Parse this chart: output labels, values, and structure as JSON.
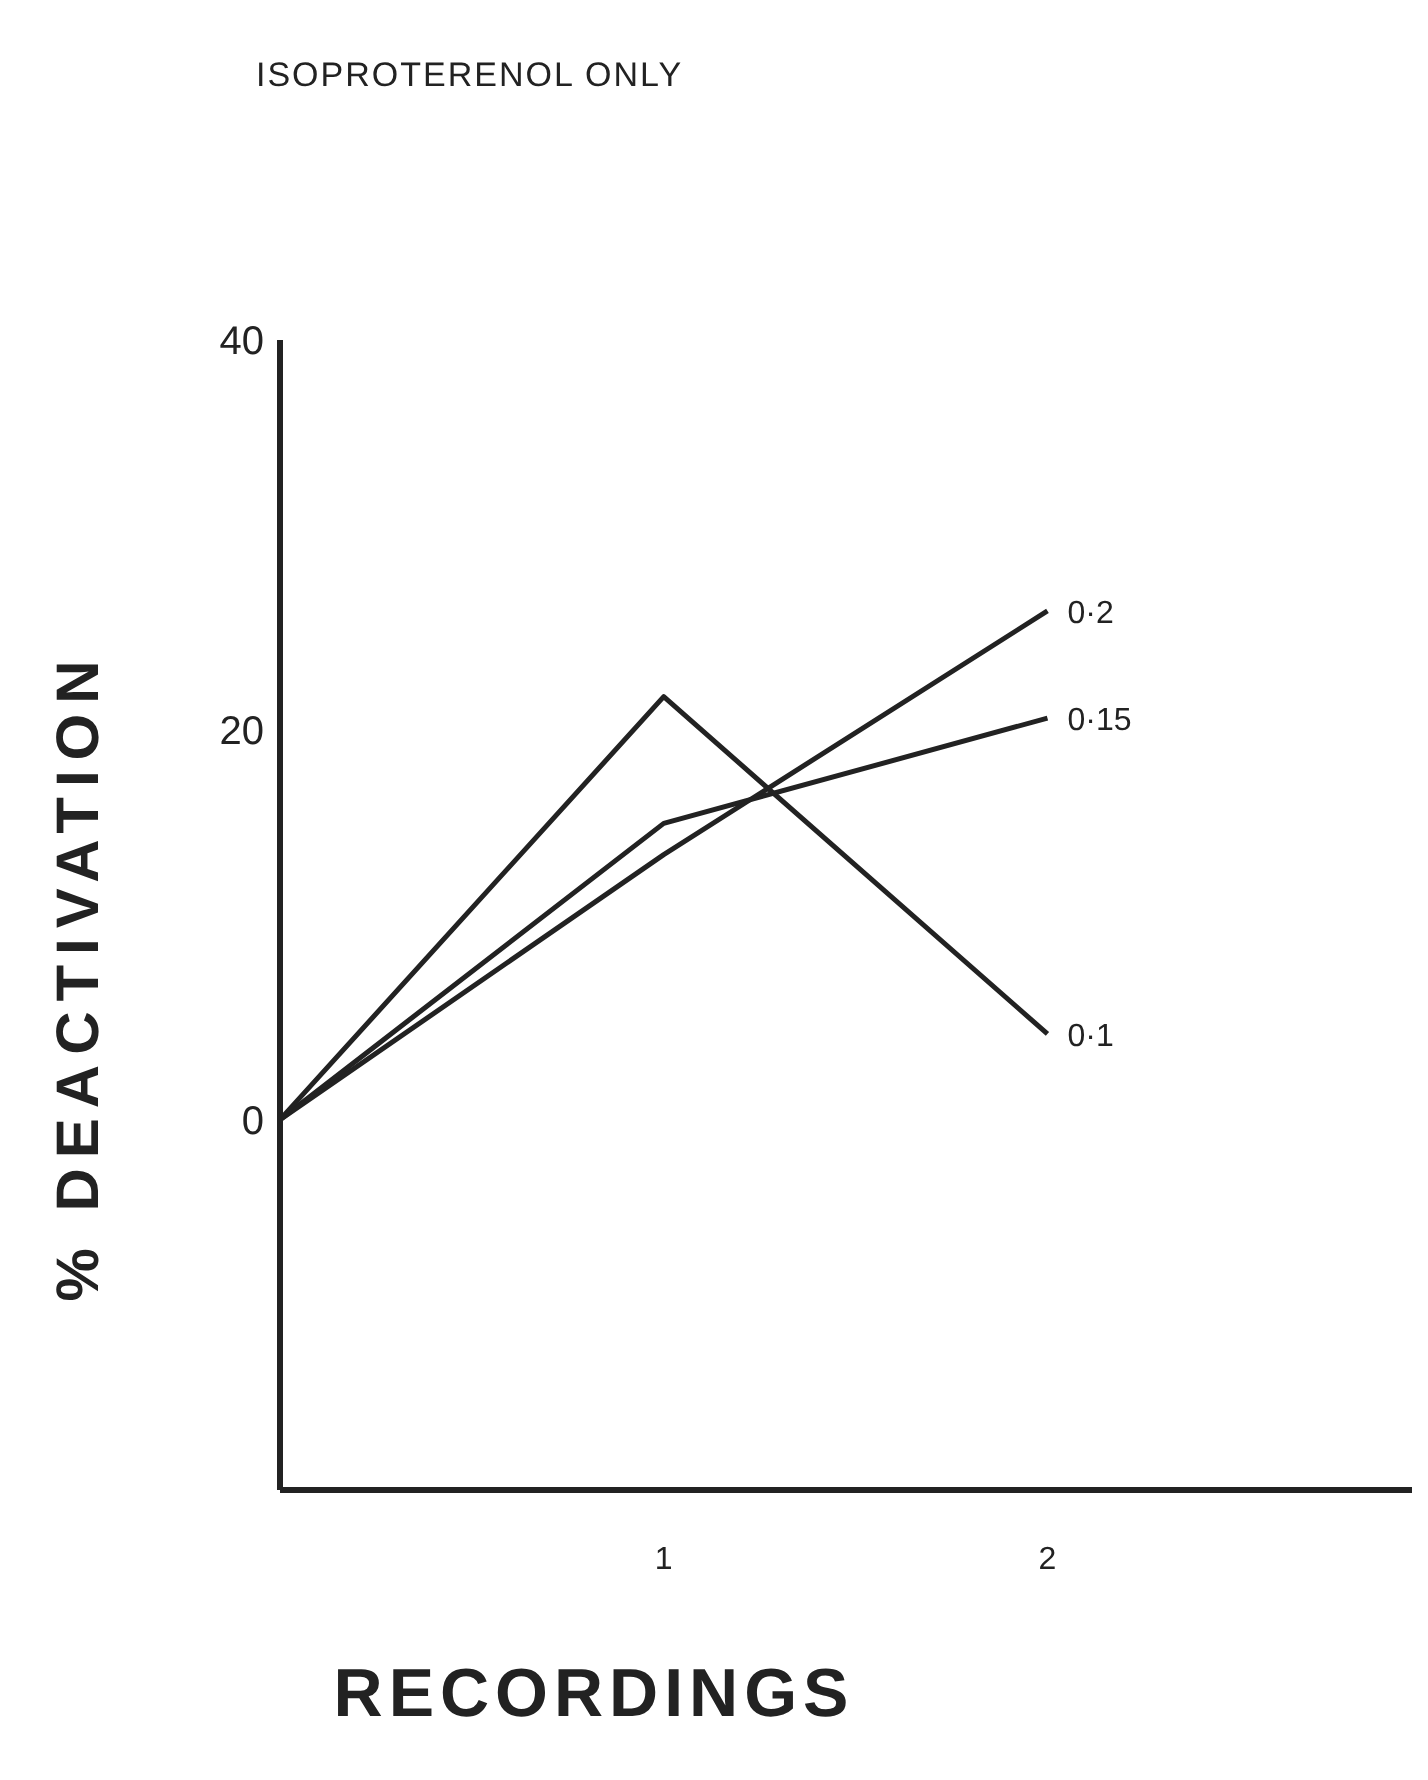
{
  "chart_data": {
    "type": "line",
    "title": "ISOPROTERENOL ONLY",
    "xlabel": "RECORDINGS",
    "ylabel": "% DEACTIVATION",
    "x": [
      0,
      1,
      2
    ],
    "xlim": [
      0,
      2.95
    ],
    "xticks": [
      1,
      2
    ],
    "ylim": [
      -19,
      40
    ],
    "yticks": [
      0,
      20,
      40
    ],
    "grid": false,
    "legend": false,
    "marker": "none",
    "line_style": "solid",
    "series": [
      {
        "name": "0·2",
        "color": "#222222",
        "values": [
          0,
          13.6,
          26.1
        ]
      },
      {
        "name": "0·15",
        "color": "#222222",
        "values": [
          0,
          15.2,
          20.6
        ]
      },
      {
        "name": "0·1",
        "color": "#222222",
        "values": [
          0,
          21.7,
          4.4
        ]
      }
    ]
  }
}
